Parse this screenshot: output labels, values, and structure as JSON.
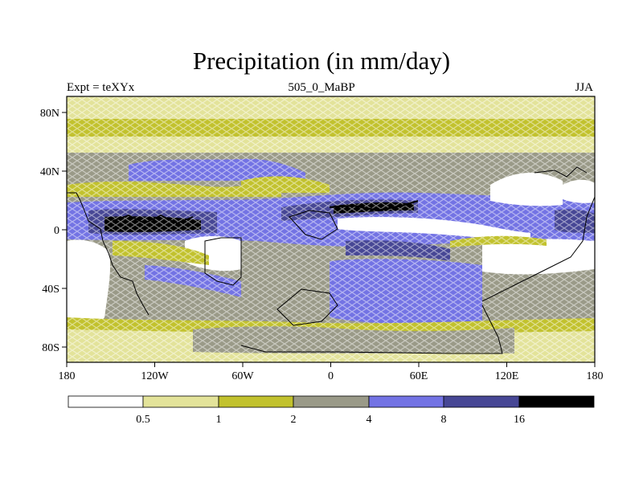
{
  "title": "Precipitation (in mm/day)",
  "subtitle_left": "Expt = teXYx",
  "subtitle_center": "505_0_MaBP",
  "subtitle_right": "JJA",
  "colors": {
    "level0": "#ffffff",
    "level1": "#e3e39a",
    "level2": "#c2c22e",
    "level3": "#9a9a88",
    "level4": "#7373e4",
    "level5": "#474795",
    "level6": "#000000",
    "coastline": "#000000"
  },
  "legend": {
    "labels": [
      "0.5",
      "1",
      "2",
      "4",
      "8",
      "16"
    ]
  },
  "axes": {
    "x_ticks": [
      "180",
      "120W",
      "60W",
      "0",
      "60E",
      "120E",
      "180"
    ],
    "y_ticks": [
      "80N",
      "40N",
      "0",
      "40S",
      "80S"
    ]
  }
}
